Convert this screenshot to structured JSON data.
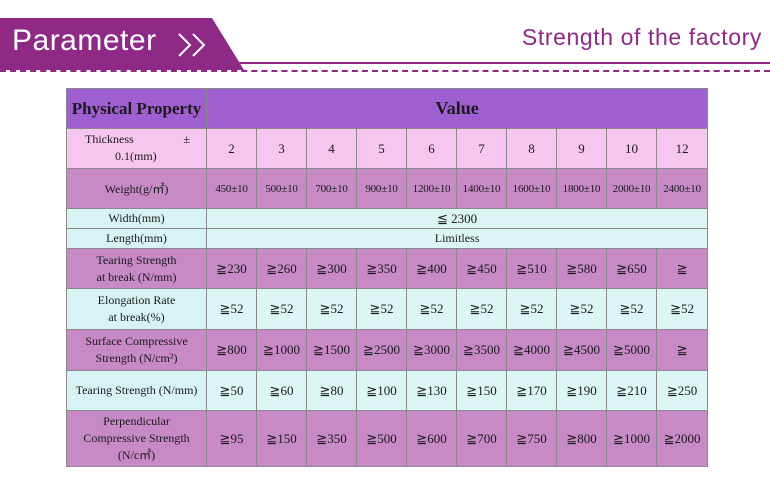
{
  "header": {
    "title": "Parameter",
    "tagline": "Strength of the factory",
    "accent_color": "#8e2a86"
  },
  "table": {
    "header": {
      "property": "Physical Property",
      "value": "Value"
    },
    "thickness": {
      "label_1": "Thickness",
      "label_pm": "±",
      "label_2": "0.1(mm)",
      "values": [
        "2",
        "3",
        "4",
        "5",
        "6",
        "7",
        "8",
        "9",
        "10",
        "12"
      ]
    },
    "weight": {
      "label": "Weight(g/㎡)",
      "values": [
        "450±10",
        "500±10",
        "700±10",
        "900±10",
        "1200±10",
        "1400±10",
        "1600±10",
        "1800±10",
        "2000±10",
        "2400±10"
      ]
    },
    "width": {
      "label": "Width(mm)",
      "value": "≦ 2300"
    },
    "length": {
      "label": "Length(mm)",
      "value": "Limitless"
    },
    "tearing_break": {
      "label_1": "Tearing Strength",
      "label_2": "at break (N/mm)",
      "values": [
        "≧230",
        "≧260",
        "≧300",
        "≧350",
        "≧400",
        "≧450",
        "≧510",
        "≧580",
        "≧650",
        "≧"
      ]
    },
    "elongation": {
      "label_1": "Elongation Rate",
      "label_2": "at break(%)",
      "values": [
        "≧52",
        "≧52",
        "≧52",
        "≧52",
        "≧52",
        "≧52",
        "≧52",
        "≧52",
        "≧52",
        "≧52"
      ]
    },
    "surface_comp": {
      "label_1": "Surface Compressive",
      "label_2": "Strength (N/cm²)",
      "values": [
        "≧800",
        "≧1000",
        "≧1500",
        "≧2500",
        "≧3000",
        "≧3500",
        "≧4000",
        "≧4500",
        "≧5000",
        "≧"
      ]
    },
    "tearing": {
      "label": "Tearing Strength (N/mm)",
      "values": [
        "≧50",
        "≧60",
        "≧80",
        "≧100",
        "≧130",
        "≧150",
        "≧170",
        "≧190",
        "≧210",
        "≧250"
      ]
    },
    "perp_comp": {
      "label_1": "Perpendicular",
      "label_2": "Compressive Strength",
      "label_3": "(N/c㎡)",
      "values": [
        "≧95",
        "≧150",
        "≧350",
        "≧500",
        "≧600",
        "≧700",
        "≧750",
        "≧800",
        "≧1000",
        "≧2000"
      ]
    }
  }
}
